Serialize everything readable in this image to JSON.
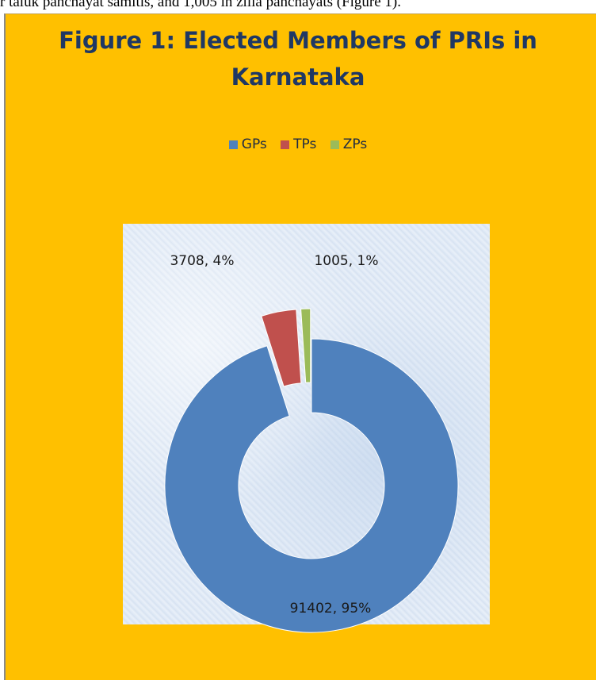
{
  "page": {
    "intro_text": "r taluk panchayat samitis, and 1,005 in zilla panchayats (Figure 1)."
  },
  "chart_data": {
    "type": "pie",
    "variant": "doughnut",
    "title_line1": "Figure 1: Elected Members of PRIs in",
    "title_line2": "Karnataka",
    "legend_position": "top",
    "background_color": "#ffc000",
    "title_color": "#1f3864",
    "categories": [
      "GPs",
      "TPs",
      "ZPs"
    ],
    "values": [
      91402,
      3708,
      1005
    ],
    "percentages": [
      "95%",
      "4%",
      "1%"
    ],
    "data_labels": [
      "91402, 95%",
      "3708, 4%",
      "1005, 1%"
    ],
    "colors": [
      "#4f81bd",
      "#c0504d",
      "#9bbb59"
    ],
    "exploded": true
  }
}
